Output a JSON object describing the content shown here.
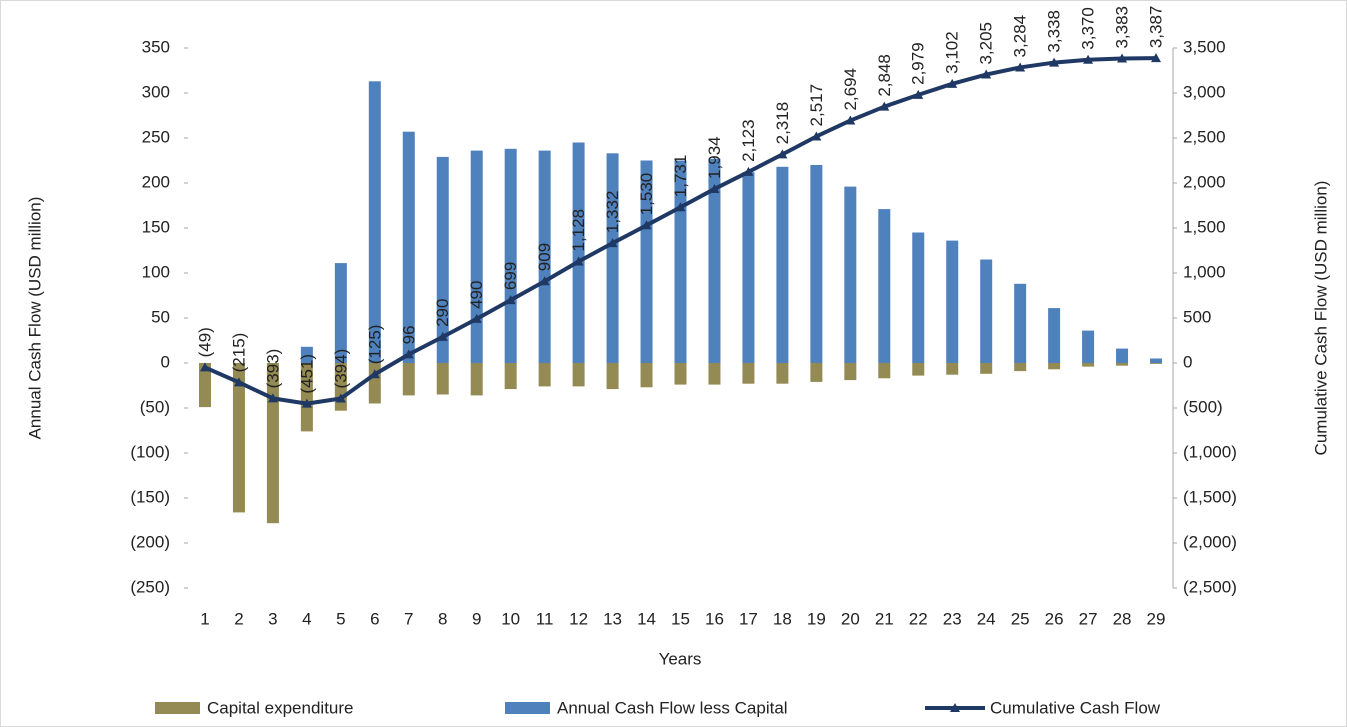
{
  "chart_data": {
    "type": "bar",
    "xlabel": "Years",
    "ylabel": "Annual Cash Flow (USD million)",
    "y2label": "Cumulative Cash Flow (USD million)",
    "categories": [
      "1",
      "2",
      "3",
      "4",
      "5",
      "6",
      "7",
      "8",
      "9",
      "10",
      "11",
      "12",
      "13",
      "14",
      "15",
      "16",
      "17",
      "18",
      "19",
      "20",
      "21",
      "22",
      "23",
      "24",
      "25",
      "26",
      "27",
      "28",
      "29"
    ],
    "ylim": [
      -250,
      350
    ],
    "yticks": [
      {
        "value": -250,
        "label": "(250)"
      },
      {
        "value": -200,
        "label": "(200)"
      },
      {
        "value": -150,
        "label": "(150)"
      },
      {
        "value": -100,
        "label": "(100)"
      },
      {
        "value": -50,
        "label": "(50)"
      },
      0,
      50,
      100,
      150,
      200,
      250,
      300,
      350
    ],
    "y2lim": [
      -2500,
      3500
    ],
    "y2ticks": [
      {
        "value": -2500,
        "label": "(2,500)"
      },
      {
        "value": -2000,
        "label": "(2,000)"
      },
      {
        "value": -1500,
        "label": "(1,500)"
      },
      {
        "value": -1000,
        "label": "(1,000)"
      },
      {
        "value": -500,
        "label": "(500)"
      },
      0,
      500,
      {
        "value": 1000,
        "label": "1,000"
      },
      {
        "value": 1500,
        "label": "1,500"
      },
      {
        "value": 2000,
        "label": "2,000"
      },
      {
        "value": 2500,
        "label": "2,500"
      },
      {
        "value": 3000,
        "label": "3,000"
      },
      {
        "value": 3500,
        "label": "3,500"
      }
    ],
    "negative_color": "#e8261f",
    "series": [
      {
        "name": "Capital expenditure",
        "type": "bar",
        "color": "#948a54",
        "values": [
          -49,
          -166,
          -178,
          -76,
          -53,
          -45,
          -36,
          -35,
          -36,
          -29,
          -26,
          -26,
          -29,
          -27,
          -24,
          -24,
          -23,
          -23,
          -21,
          -19,
          -17,
          -14,
          -13,
          -12,
          -9,
          -7,
          -4,
          -3,
          -1
        ]
      },
      {
        "name": "Annual Cash Flow less Capital",
        "type": "bar",
        "color": "#4f81bd",
        "values": [
          0,
          0,
          0,
          18,
          111,
          313,
          257,
          229,
          236,
          238,
          236,
          245,
          233,
          225,
          225,
          227,
          212,
          218,
          220,
          196,
          171,
          145,
          136,
          115,
          88,
          61,
          36,
          16,
          5
        ]
      },
      {
        "name": "Cumulative Cash Flow",
        "type": "line",
        "axis": "y2",
        "color": "#1f3864",
        "values": [
          -49,
          -215,
          -393,
          -451,
          -394,
          -125,
          96,
          290,
          490,
          699,
          909,
          1128,
          1332,
          1530,
          1731,
          1934,
          2123,
          2318,
          2517,
          2694,
          2848,
          2979,
          3102,
          3205,
          3284,
          3338,
          3370,
          3383,
          3387
        ],
        "value_labels": [
          "(49)",
          "(215)",
          "(393)",
          "(451)",
          "(394)",
          "(125)",
          "96",
          "290",
          "490",
          "699",
          "909",
          "1,128",
          "1,332",
          "1,530",
          "1,731",
          "1,934",
          "2,123",
          "2,318",
          "2,517",
          "2,694",
          "2,848",
          "2,979",
          "3,102",
          "3,205",
          "3,284",
          "3,338",
          "3,370",
          "3,383",
          "3,387"
        ]
      }
    ]
  }
}
